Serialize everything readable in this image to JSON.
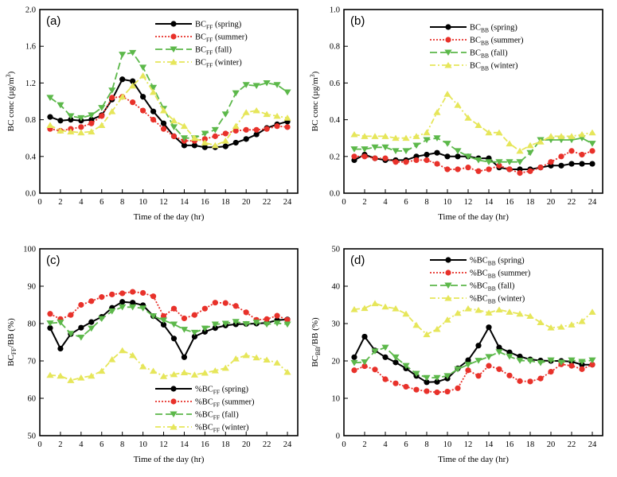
{
  "figure": {
    "colors": {
      "spring": "#000000",
      "summer": "#e8312a",
      "fall": "#5cb84a",
      "winter": "#e6e65a",
      "axis": "#000000"
    },
    "hours": [
      1,
      2,
      3,
      4,
      5,
      6,
      7,
      8,
      9,
      10,
      11,
      12,
      13,
      14,
      15,
      16,
      17,
      18,
      19,
      20,
      21,
      22,
      23,
      24
    ]
  },
  "chart_data": [
    {
      "id": "a",
      "type": "line",
      "panel_label": "(a)",
      "xlabel": "Time of the day (hr)",
      "ylabel": "BC conc (µg/m³)",
      "ylabel_parts": {
        "main": "BC conc (µg/m",
        "sup": "3",
        "end": ")"
      },
      "xlim": [
        0,
        25
      ],
      "ylim": [
        0.0,
        2.0
      ],
      "xticks": [
        0,
        2,
        4,
        6,
        8,
        10,
        12,
        14,
        16,
        18,
        20,
        22,
        24
      ],
      "yticks": [
        0.0,
        0.4,
        0.8,
        1.2,
        1.6,
        2.0
      ],
      "ytick_labels": [
        "0.0",
        "0.4",
        "0.8",
        "1.2",
        "1.6",
        "2.0"
      ],
      "legend_position": "top-right",
      "series": [
        {
          "name": "BC_FF (spring)",
          "label_base": "BC",
          "label_sub": "FF",
          "label_rest": " (spring)",
          "season": "spring",
          "marker": "circle",
          "values": [
            0.83,
            0.79,
            0.8,
            0.79,
            0.8,
            0.85,
            1.02,
            1.24,
            1.22,
            1.05,
            0.89,
            0.76,
            0.62,
            0.52,
            0.52,
            0.5,
            0.5,
            0.51,
            0.55,
            0.59,
            0.64,
            0.71,
            0.75,
            0.78
          ]
        },
        {
          "name": "BC_FF (summer)",
          "label_base": "BC",
          "label_sub": "FF",
          "label_rest": " (summer)",
          "season": "summer",
          "marker": "circle",
          "values": [
            0.7,
            0.68,
            0.7,
            0.72,
            0.76,
            0.84,
            1.04,
            1.05,
            0.99,
            0.9,
            0.8,
            0.7,
            0.62,
            0.57,
            0.57,
            0.59,
            0.62,
            0.65,
            0.68,
            0.69,
            0.69,
            0.7,
            0.73,
            0.72
          ]
        },
        {
          "name": "BC_FF (fall)",
          "label_base": "BC",
          "label_sub": "FF",
          "label_rest": " (fall)",
          "season": "fall",
          "marker": "triangle-down",
          "values": [
            1.04,
            0.96,
            0.84,
            0.82,
            0.85,
            0.93,
            1.12,
            1.51,
            1.53,
            1.37,
            1.15,
            0.92,
            0.72,
            0.6,
            0.6,
            0.65,
            0.69,
            0.86,
            1.09,
            1.18,
            1.17,
            1.2,
            1.18,
            1.1
          ]
        },
        {
          "name": "BC_FF (winter)",
          "label_base": "BC",
          "label_sub": "FF",
          "label_rest": " (winter)",
          "season": "winter",
          "marker": "triangle-up",
          "values": [
            0.74,
            0.68,
            0.67,
            0.66,
            0.67,
            0.74,
            0.89,
            1.05,
            1.17,
            1.28,
            1.1,
            0.9,
            0.79,
            0.73,
            0.6,
            0.55,
            0.52,
            0.57,
            0.73,
            0.88,
            0.9,
            0.86,
            0.84,
            0.82
          ]
        }
      ]
    },
    {
      "id": "b",
      "type": "line",
      "panel_label": "(b)",
      "xlabel": "Time of the day (hr)",
      "ylabel": "BC conc (µg/m³)",
      "ylabel_parts": {
        "main": "BC conc (µg/m",
        "sup": "3",
        "end": ")"
      },
      "xlim": [
        0,
        25
      ],
      "ylim": [
        0.0,
        1.0
      ],
      "xticks": [
        0,
        2,
        4,
        6,
        8,
        10,
        12,
        14,
        16,
        18,
        20,
        22,
        24
      ],
      "yticks": [
        0.0,
        0.2,
        0.4,
        0.6,
        0.8,
        1.0
      ],
      "ytick_labels": [
        "0.0",
        "0.2",
        "0.4",
        "0.6",
        "0.8",
        "1.0"
      ],
      "legend_position": "top-right",
      "series": [
        {
          "name": "BC_BB (spring)",
          "label_base": "BC",
          "label_sub": "BB",
          "label_rest": " (spring)",
          "season": "spring",
          "marker": "circle",
          "values": [
            0.18,
            0.21,
            0.19,
            0.18,
            0.18,
            0.18,
            0.2,
            0.21,
            0.22,
            0.2,
            0.2,
            0.2,
            0.19,
            0.19,
            0.14,
            0.13,
            0.13,
            0.13,
            0.14,
            0.15,
            0.15,
            0.16,
            0.16,
            0.16
          ]
        },
        {
          "name": "BC_BB (summer)",
          "label_base": "BC",
          "label_sub": "BB",
          "label_rest": " (summer)",
          "season": "summer",
          "marker": "circle",
          "values": [
            0.2,
            0.2,
            0.19,
            0.19,
            0.17,
            0.17,
            0.18,
            0.18,
            0.16,
            0.13,
            0.13,
            0.14,
            0.12,
            0.13,
            0.15,
            0.13,
            0.11,
            0.12,
            0.14,
            0.17,
            0.2,
            0.23,
            0.21,
            0.23
          ]
        },
        {
          "name": "BC_BB (fall)",
          "label_base": "BC",
          "label_sub": "BB",
          "label_rest": " (fall)",
          "season": "fall",
          "marker": "triangle-down",
          "values": [
            0.24,
            0.24,
            0.25,
            0.25,
            0.23,
            0.23,
            0.26,
            0.29,
            0.3,
            0.27,
            0.23,
            0.2,
            0.18,
            0.17,
            0.17,
            0.17,
            0.17,
            0.22,
            0.29,
            0.29,
            0.29,
            0.29,
            0.3,
            0.27
          ]
        },
        {
          "name": "BC_BB (winter)",
          "label_base": "BC",
          "label_sub": "BB",
          "label_rest": " (winter)",
          "season": "winter",
          "marker": "triangle-up",
          "values": [
            0.32,
            0.31,
            0.31,
            0.31,
            0.3,
            0.3,
            0.31,
            0.33,
            0.44,
            0.54,
            0.48,
            0.41,
            0.37,
            0.33,
            0.33,
            0.27,
            0.23,
            0.26,
            0.28,
            0.31,
            0.31,
            0.31,
            0.32,
            0.33
          ]
        }
      ]
    },
    {
      "id": "c",
      "type": "line",
      "panel_label": "(c)",
      "xlabel": "Time of the day (hr)",
      "ylabel": "BC_FF/BB (%)",
      "ylabel_parts": {
        "main": "BC",
        "sub": "FF",
        "end": "/BB (%)"
      },
      "xlim": [
        0,
        25
      ],
      "ylim": [
        50,
        100
      ],
      "xticks": [
        0,
        2,
        4,
        6,
        8,
        10,
        12,
        14,
        16,
        18,
        20,
        22,
        24
      ],
      "yticks": [
        50,
        60,
        70,
        80,
        90,
        100
      ],
      "ytick_labels": [
        "50",
        "60",
        "70",
        "80",
        "90",
        "100"
      ],
      "legend_position": "bottom-right",
      "series": [
        {
          "name": "%BC_FF (spring)",
          "label_base": "%BC",
          "label_sub": "FF",
          "label_rest": " (spring)",
          "season": "spring",
          "marker": "circle",
          "values": [
            78.8,
            73.3,
            77.2,
            78.9,
            80.4,
            81.8,
            84.2,
            85.8,
            85.6,
            84.9,
            82.0,
            79.7,
            76.0,
            71.0,
            76.5,
            77.8,
            78.8,
            79.5,
            79.8,
            79.9,
            80.0,
            80.2,
            80.9,
            81.1
          ]
        },
        {
          "name": "%BC_FF (summer)",
          "label_base": "%BC",
          "label_sub": "FF",
          "label_rest": " (summer)",
          "season": "summer",
          "marker": "circle",
          "values": [
            82.6,
            81.2,
            82.3,
            85.0,
            86.0,
            87.1,
            87.8,
            88.1,
            88.5,
            88.2,
            87.3,
            82.0,
            84.0,
            81.4,
            82.3,
            84.0,
            85.6,
            85.5,
            84.7,
            83.0,
            81.0,
            81.2,
            82.1,
            81.0
          ]
        },
        {
          "name": "%BC_FF (fall)",
          "label_base": "%BC",
          "label_sub": "FF",
          "label_rest": " (fall)",
          "season": "fall",
          "marker": "triangle-down",
          "values": [
            80.1,
            80.3,
            77.3,
            76.3,
            78.7,
            81.3,
            83.3,
            84.4,
            84.4,
            84.1,
            82.0,
            80.9,
            79.8,
            78.4,
            77.6,
            78.7,
            79.8,
            80.0,
            80.5,
            79.9,
            80.3,
            79.8,
            80.1,
            79.8
          ]
        },
        {
          "name": "%BC_FF (winter)",
          "label_base": "%BC",
          "label_sub": "FF",
          "label_rest": " (winter)",
          "season": "winter",
          "marker": "triangle-up",
          "values": [
            66.2,
            66.0,
            64.8,
            65.5,
            66.0,
            67.3,
            70.4,
            72.8,
            71.5,
            68.5,
            67.3,
            65.9,
            66.4,
            66.9,
            66.3,
            66.8,
            67.4,
            68.1,
            70.6,
            71.5,
            70.9,
            70.3,
            69.5,
            67.0
          ]
        }
      ]
    },
    {
      "id": "d",
      "type": "line",
      "panel_label": "(d)",
      "xlabel": "Time of the day (hr)",
      "ylabel": "BC_BB/BB (%)",
      "ylabel_parts": {
        "main": "BC",
        "sub": "BB",
        "end": "/BB (%)"
      },
      "xlim": [
        0,
        25
      ],
      "ylim": [
        0,
        50
      ],
      "xticks": [
        0,
        2,
        4,
        6,
        8,
        10,
        12,
        14,
        16,
        18,
        20,
        22,
        24
      ],
      "yticks": [
        0,
        10,
        20,
        30,
        40,
        50
      ],
      "ytick_labels": [
        "0",
        "10",
        "20",
        "30",
        "40",
        "50"
      ],
      "legend_position": "top-right",
      "series": [
        {
          "name": "%BC_BB (spring)",
          "label_base": "%BC",
          "label_sub": "BB",
          "label_rest": " (spring)",
          "season": "spring",
          "marker": "circle",
          "values": [
            21.0,
            26.5,
            22.8,
            21.0,
            19.6,
            18.0,
            16.0,
            14.3,
            14.4,
            15.3,
            18.0,
            20.2,
            24.1,
            29.0,
            23.6,
            22.3,
            21.2,
            20.4,
            20.1,
            20.0,
            20.0,
            19.8,
            19.0,
            19.0
          ]
        },
        {
          "name": "%BC_BB (summer)",
          "label_base": "%BC",
          "label_sub": "BB",
          "label_rest": " (summer)",
          "season": "summer",
          "marker": "circle",
          "values": [
            17.5,
            18.6,
            17.7,
            15.1,
            14.0,
            13.1,
            12.3,
            11.9,
            11.6,
            11.8,
            12.7,
            17.5,
            16.0,
            18.7,
            17.8,
            16.1,
            14.6,
            14.5,
            15.3,
            17.1,
            19.1,
            18.7,
            17.8,
            19.0
          ]
        },
        {
          "name": "%BC_BB (fall)",
          "label_base": "%BC",
          "label_sub": "BB",
          "label_rest": " (fall)",
          "season": "fall",
          "marker": "triangle-down",
          "values": [
            19.5,
            19.7,
            22.6,
            23.6,
            21.0,
            18.7,
            16.6,
            15.5,
            15.5,
            16.0,
            17.8,
            19.0,
            20.1,
            21.1,
            22.4,
            21.2,
            20.1,
            20.0,
            19.5,
            20.2,
            19.6,
            20.2,
            19.8,
            20.2
          ]
        },
        {
          "name": "%BC_BB (winter)",
          "label_base": "%BC",
          "label_sub": "BB",
          "label_rest": " (winter)",
          "season": "winter",
          "marker": "triangle-up",
          "values": [
            33.8,
            34.1,
            35.4,
            34.5,
            34.0,
            32.6,
            29.6,
            27.1,
            28.5,
            31.0,
            32.8,
            34.0,
            33.6,
            32.9,
            33.7,
            33.1,
            32.6,
            32.0,
            30.3,
            28.9,
            29.1,
            29.7,
            30.6,
            33.1
          ]
        }
      ]
    }
  ]
}
